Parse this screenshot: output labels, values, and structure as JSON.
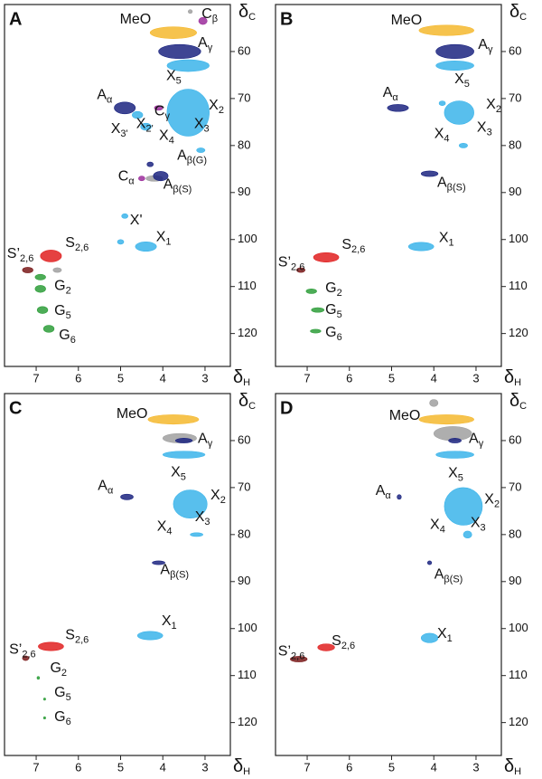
{
  "chart_data": [
    {
      "type": "contour",
      "panel_label": "A",
      "x_label": {
        "text": "δ",
        "sub": "H"
      },
      "y_label": {
        "text": "δ",
        "sub": "C"
      },
      "xlim": [
        7.75,
        2.4
      ],
      "ylim": [
        50,
        127
      ],
      "xticks": [
        7,
        6,
        5,
        4,
        3
      ],
      "yticks": [
        60,
        70,
        80,
        90,
        100,
        110,
        120
      ],
      "peaks": [
        {
          "x": 3.75,
          "y": 56,
          "xspan": 1.1,
          "yspan": 2.5,
          "color": "#f5b82e"
        },
        {
          "x": 3.05,
          "y": 53.5,
          "xspan": 0.2,
          "yspan": 1.5,
          "color": "#9b2d9b"
        },
        {
          "x": 3.35,
          "y": 51.5,
          "xspan": 0.1,
          "yspan": 0.8,
          "color": "#a0a0a0"
        },
        {
          "x": 3.6,
          "y": 60,
          "xspan": 1.0,
          "yspan": 3,
          "color": "#1c2580"
        },
        {
          "x": 3.4,
          "y": 63,
          "xspan": 1.0,
          "yspan": 2.5,
          "color": "#3bb4ea"
        },
        {
          "x": 3.4,
          "y": 73,
          "xspan": 1.0,
          "yspan": 10,
          "color": "#3bb4ea"
        },
        {
          "x": 3.1,
          "y": 81,
          "xspan": 0.2,
          "yspan": 1,
          "color": "#3bb4ea"
        },
        {
          "x": 4.9,
          "y": 72,
          "xspan": 0.5,
          "yspan": 2.5,
          "color": "#1c2580"
        },
        {
          "x": 4.6,
          "y": 73.5,
          "xspan": 0.25,
          "yspan": 1.5,
          "color": "#3bb4ea"
        },
        {
          "x": 4.4,
          "y": 76,
          "xspan": 0.25,
          "yspan": 1.5,
          "color": "#3bb4ea"
        },
        {
          "x": 4.1,
          "y": 72,
          "xspan": 0.2,
          "yspan": 1,
          "color": "#9b2d9b"
        },
        {
          "x": 4.3,
          "y": 84,
          "xspan": 0.15,
          "yspan": 1,
          "color": "#1c2580"
        },
        {
          "x": 4.5,
          "y": 87,
          "xspan": 0.15,
          "yspan": 1,
          "color": "#9b2d9b"
        },
        {
          "x": 4.2,
          "y": 87,
          "xspan": 0.4,
          "yspan": 1.2,
          "color": "#a0a0a0"
        },
        {
          "x": 4.05,
          "y": 86.5,
          "xspan": 0.35,
          "yspan": 2,
          "color": "#1c2580"
        },
        {
          "x": 4.9,
          "y": 95,
          "xspan": 0.15,
          "yspan": 1,
          "color": "#3bb4ea"
        },
        {
          "x": 4.4,
          "y": 101.5,
          "xspan": 0.5,
          "yspan": 2,
          "color": "#3bb4ea"
        },
        {
          "x": 5.0,
          "y": 100.5,
          "xspan": 0.15,
          "yspan": 1,
          "color": "#3bb4ea"
        },
        {
          "x": 6.65,
          "y": 103.5,
          "xspan": 0.5,
          "yspan": 2.5,
          "color": "#e02020"
        },
        {
          "x": 7.2,
          "y": 106.5,
          "xspan": 0.25,
          "yspan": 1.2,
          "color": "#7a1a1a"
        },
        {
          "x": 6.5,
          "y": 106.5,
          "xspan": 0.2,
          "yspan": 1,
          "color": "#a0a0a0"
        },
        {
          "x": 6.9,
          "y": 108,
          "xspan": 0.25,
          "yspan": 1.2,
          "color": "#2e9e3a"
        },
        {
          "x": 6.9,
          "y": 110.5,
          "xspan": 0.25,
          "yspan": 1.5,
          "color": "#2e9e3a"
        },
        {
          "x": 6.85,
          "y": 115,
          "xspan": 0.25,
          "yspan": 1.5,
          "color": "#2e9e3a"
        },
        {
          "x": 6.7,
          "y": 119,
          "xspan": 0.25,
          "yspan": 1.5,
          "color": "#2e9e3a"
        }
      ],
      "annotations": [
        {
          "text": "MeO",
          "sub": "",
          "x": 5.02,
          "y": 53.3
        },
        {
          "text": "C",
          "sub": "β",
          "x": 3.08,
          "y": 52.1
        },
        {
          "text": "A",
          "sub": "γ",
          "x": 3.17,
          "y": 58.3
        },
        {
          "text": "X",
          "sub": "5",
          "x": 3.92,
          "y": 65.3
        },
        {
          "text": "X",
          "sub": "2",
          "x": 2.91,
          "y": 71.6
        },
        {
          "text": "C",
          "sub": "γ",
          "x": 4.2,
          "y": 72.8
        },
        {
          "text": "A",
          "sub": "α",
          "x": 5.56,
          "y": 69.3
        },
        {
          "text": "X",
          "sub": "2'",
          "x": 4.63,
          "y": 75.5
        },
        {
          "text": "X",
          "sub": "3'",
          "x": 5.23,
          "y": 76.6
        },
        {
          "text": "X",
          "sub": "3",
          "x": 3.26,
          "y": 75.5
        },
        {
          "text": "X",
          "sub": "4",
          "x": 4.09,
          "y": 78
        },
        {
          "text": "A",
          "sub": "β(G)",
          "x": 3.66,
          "y": 82.2
        },
        {
          "text": "C",
          "sub": "α",
          "x": 5.06,
          "y": 86.7
        },
        {
          "text": "A",
          "sub": "β(S)",
          "x": 3.99,
          "y": 88.4
        },
        {
          "text": "X'",
          "sub": "",
          "x": 4.78,
          "y": 96
        },
        {
          "text": "X",
          "sub": "1",
          "x": 4.16,
          "y": 99.6
        },
        {
          "text": "S",
          "sub": "2,6",
          "x": 6.31,
          "y": 100.8
        },
        {
          "text": "S’",
          "sub": "2,6",
          "x": 7.69,
          "y": 103.1
        },
        {
          "text": "G",
          "sub": "2",
          "x": 6.57,
          "y": 110
        },
        {
          "text": "G",
          "sub": "5",
          "x": 6.57,
          "y": 115.3
        },
        {
          "text": "G",
          "sub": "6",
          "x": 6.46,
          "y": 120.5
        }
      ]
    },
    {
      "type": "contour",
      "panel_label": "B",
      "x_label": {
        "text": "δ",
        "sub": "H"
      },
      "y_label": {
        "text": "δ",
        "sub": "C"
      },
      "xlim": [
        7.75,
        2.4
      ],
      "ylim": [
        50,
        127
      ],
      "xticks": [
        7,
        6,
        5,
        4,
        3
      ],
      "yticks": [
        60,
        70,
        80,
        90,
        100,
        110,
        120
      ],
      "peaks": [
        {
          "x": 3.7,
          "y": 55.5,
          "xspan": 1.3,
          "yspan": 2.2,
          "color": "#f5b82e"
        },
        {
          "x": 3.5,
          "y": 60,
          "xspan": 0.9,
          "yspan": 3,
          "color": "#1c2580"
        },
        {
          "x": 3.5,
          "y": 63,
          "xspan": 0.9,
          "yspan": 2,
          "color": "#3bb4ea"
        },
        {
          "x": 4.85,
          "y": 72,
          "xspan": 0.5,
          "yspan": 1.5,
          "color": "#1c2580"
        },
        {
          "x": 3.4,
          "y": 73,
          "xspan": 0.7,
          "yspan": 5,
          "color": "#3bb4ea"
        },
        {
          "x": 3.8,
          "y": 71,
          "xspan": 0.15,
          "yspan": 1,
          "color": "#3bb4ea"
        },
        {
          "x": 3.3,
          "y": 80,
          "xspan": 0.2,
          "yspan": 1,
          "color": "#3bb4ea"
        },
        {
          "x": 4.1,
          "y": 86,
          "xspan": 0.4,
          "yspan": 1.2,
          "color": "#1c2580"
        },
        {
          "x": 4.3,
          "y": 101.5,
          "xspan": 0.6,
          "yspan": 1.8,
          "color": "#3bb4ea"
        },
        {
          "x": 6.55,
          "y": 103.8,
          "xspan": 0.6,
          "yspan": 2,
          "color": "#e02020"
        },
        {
          "x": 7.15,
          "y": 106.5,
          "xspan": 0.2,
          "yspan": 1,
          "color": "#7a1a1a"
        },
        {
          "x": 6.9,
          "y": 111,
          "xspan": 0.25,
          "yspan": 1,
          "color": "#2e9e3a"
        },
        {
          "x": 6.75,
          "y": 115,
          "xspan": 0.3,
          "yspan": 1,
          "color": "#2e9e3a"
        },
        {
          "x": 6.8,
          "y": 119.5,
          "xspan": 0.25,
          "yspan": 0.8,
          "color": "#2e9e3a"
        }
      ],
      "annotations": [
        {
          "text": "MeO",
          "sub": "",
          "x": 5.02,
          "y": 53.5
        },
        {
          "text": "A",
          "sub": "γ",
          "x": 2.95,
          "y": 58.7
        },
        {
          "text": "X",
          "sub": "5",
          "x": 3.51,
          "y": 66
        },
        {
          "text": "A",
          "sub": "α",
          "x": 5.21,
          "y": 68.9
        },
        {
          "text": "X",
          "sub": "2",
          "x": 2.76,
          "y": 71.4
        },
        {
          "text": "X",
          "sub": "3",
          "x": 2.98,
          "y": 76.3
        },
        {
          "text": "X",
          "sub": "4",
          "x": 3.99,
          "y": 77.6
        },
        {
          "text": "A",
          "sub": "β(S)",
          "x": 3.92,
          "y": 88
        },
        {
          "text": "X",
          "sub": "1",
          "x": 3.88,
          "y": 99.8
        },
        {
          "text": "S",
          "sub": "2,6",
          "x": 6.18,
          "y": 101.2
        },
        {
          "text": "S’",
          "sub": "2,6",
          "x": 7.69,
          "y": 105
        },
        {
          "text": "G",
          "sub": "2",
          "x": 6.57,
          "y": 110.4
        },
        {
          "text": "G",
          "sub": "5",
          "x": 6.57,
          "y": 115.1
        },
        {
          "text": "G",
          "sub": "6",
          "x": 6.57,
          "y": 119.9
        }
      ]
    },
    {
      "type": "contour",
      "panel_label": "C",
      "x_label": {
        "text": "δ",
        "sub": "H"
      },
      "y_label": {
        "text": "δ",
        "sub": "C"
      },
      "xlim": [
        7.75,
        2.4
      ],
      "ylim": [
        50,
        127
      ],
      "xticks": [
        7,
        6,
        5,
        4,
        3
      ],
      "yticks": [
        60,
        70,
        80,
        90,
        100,
        110,
        120
      ],
      "peaks": [
        {
          "x": 3.75,
          "y": 55.5,
          "xspan": 1.2,
          "yspan": 2,
          "color": "#f5b82e"
        },
        {
          "x": 3.6,
          "y": 59.5,
          "xspan": 0.8,
          "yspan": 2,
          "color": "#a0a0a0"
        },
        {
          "x": 3.5,
          "y": 60,
          "xspan": 0.4,
          "yspan": 1,
          "color": "#1c2580"
        },
        {
          "x": 3.5,
          "y": 63,
          "xspan": 1.0,
          "yspan": 1.5,
          "color": "#3bb4ea"
        },
        {
          "x": 4.85,
          "y": 72,
          "xspan": 0.3,
          "yspan": 1.2,
          "color": "#1c2580"
        },
        {
          "x": 3.35,
          "y": 73.5,
          "xspan": 0.8,
          "yspan": 6,
          "color": "#3bb4ea"
        },
        {
          "x": 3.2,
          "y": 80,
          "xspan": 0.3,
          "yspan": 0.8,
          "color": "#3bb4ea"
        },
        {
          "x": 4.1,
          "y": 86,
          "xspan": 0.3,
          "yspan": 0.8,
          "color": "#1c2580"
        },
        {
          "x": 4.3,
          "y": 101.5,
          "xspan": 0.6,
          "yspan": 1.8,
          "color": "#3bb4ea"
        },
        {
          "x": 6.65,
          "y": 103.8,
          "xspan": 0.6,
          "yspan": 1.8,
          "color": "#e02020"
        },
        {
          "x": 7.25,
          "y": 106.3,
          "xspan": 0.15,
          "yspan": 1,
          "color": "#7a1a1a"
        },
        {
          "x": 6.95,
          "y": 110.5,
          "xspan": 0.06,
          "yspan": 0.6,
          "color": "#2e9e3a"
        },
        {
          "x": 6.8,
          "y": 115,
          "xspan": 0.05,
          "yspan": 0.5,
          "color": "#2e9e3a"
        },
        {
          "x": 6.8,
          "y": 119,
          "xspan": 0.05,
          "yspan": 0.5,
          "color": "#2e9e3a"
        }
      ],
      "annotations": [
        {
          "text": "MeO",
          "sub": "",
          "x": 5.1,
          "y": 54.4
        },
        {
          "text": "A",
          "sub": "γ",
          "x": 3.17,
          "y": 59.7
        },
        {
          "text": "X",
          "sub": "5",
          "x": 3.81,
          "y": 66.8
        },
        {
          "text": "A",
          "sub": "α",
          "x": 5.54,
          "y": 69.7
        },
        {
          "text": "X",
          "sub": "2",
          "x": 2.87,
          "y": 71.8
        },
        {
          "text": "X",
          "sub": "3",
          "x": 3.24,
          "y": 76.4
        },
        {
          "text": "X",
          "sub": "4",
          "x": 4.14,
          "y": 78.4
        },
        {
          "text": "A",
          "sub": "β(S)",
          "x": 4.06,
          "y": 87.6
        },
        {
          "text": "X",
          "sub": "1",
          "x": 4.03,
          "y": 98.5
        },
        {
          "text": "S",
          "sub": "2,6",
          "x": 6.31,
          "y": 101.5
        },
        {
          "text": "S’",
          "sub": "2,6",
          "x": 7.64,
          "y": 104.6
        },
        {
          "text": "G",
          "sub": "2",
          "x": 6.67,
          "y": 108.5
        },
        {
          "text": "G",
          "sub": "5",
          "x": 6.57,
          "y": 113.7
        },
        {
          "text": "G",
          "sub": "6",
          "x": 6.57,
          "y": 118.9
        }
      ]
    },
    {
      "type": "contour",
      "panel_label": "D",
      "x_label": {
        "text": "δ",
        "sub": "H"
      },
      "y_label": {
        "text": "δ",
        "sub": "C"
      },
      "xlim": [
        7.75,
        2.4
      ],
      "ylim": [
        50,
        127
      ],
      "xticks": [
        7,
        6,
        5,
        4,
        3
      ],
      "yticks": [
        60,
        70,
        80,
        90,
        100,
        110,
        120
      ],
      "peaks": [
        {
          "x": 3.7,
          "y": 55.5,
          "xspan": 1.3,
          "yspan": 2,
          "color": "#f5b82e"
        },
        {
          "x": 3.55,
          "y": 58.5,
          "xspan": 0.9,
          "yspan": 3,
          "color": "#a0a0a0"
        },
        {
          "x": 4.0,
          "y": 52,
          "xspan": 0.2,
          "yspan": 1.5,
          "color": "#a0a0a0"
        },
        {
          "x": 3.5,
          "y": 60,
          "xspan": 0.3,
          "yspan": 1,
          "color": "#1c2580"
        },
        {
          "x": 3.5,
          "y": 63,
          "xspan": 0.9,
          "yspan": 1.5,
          "color": "#3bb4ea"
        },
        {
          "x": 4.82,
          "y": 72,
          "xspan": 0.1,
          "yspan": 1,
          "color": "#1c2580"
        },
        {
          "x": 3.3,
          "y": 74,
          "xspan": 0.9,
          "yspan": 8,
          "color": "#3bb4ea"
        },
        {
          "x": 3.2,
          "y": 80,
          "xspan": 0.2,
          "yspan": 1.5,
          "color": "#3bb4ea"
        },
        {
          "x": 4.1,
          "y": 86,
          "xspan": 0.1,
          "yspan": 0.8,
          "color": "#1c2580"
        },
        {
          "x": 4.1,
          "y": 102,
          "xspan": 0.4,
          "yspan": 2,
          "color": "#3bb4ea"
        },
        {
          "x": 6.55,
          "y": 104,
          "xspan": 0.4,
          "yspan": 1.5,
          "color": "#e02020"
        },
        {
          "x": 7.2,
          "y": 106.5,
          "xspan": 0.4,
          "yspan": 1.2,
          "color": "#7a1a1a"
        }
      ],
      "annotations": [
        {
          "text": "MeO",
          "sub": "",
          "x": 5.06,
          "y": 54.8
        },
        {
          "text": "A",
          "sub": "γ",
          "x": 3.17,
          "y": 59.7
        },
        {
          "text": "X",
          "sub": "5",
          "x": 3.66,
          "y": 67
        },
        {
          "text": "A",
          "sub": "α",
          "x": 5.38,
          "y": 70.8
        },
        {
          "text": "X",
          "sub": "2",
          "x": 2.8,
          "y": 72.6
        },
        {
          "text": "X",
          "sub": "3",
          "x": 3.13,
          "y": 77.6
        },
        {
          "text": "X",
          "sub": "4",
          "x": 4.09,
          "y": 78
        },
        {
          "text": "A",
          "sub": "β(S)",
          "x": 3.99,
          "y": 88.6
        },
        {
          "text": "X",
          "sub": "1",
          "x": 3.92,
          "y": 101.2
        },
        {
          "text": "S",
          "sub": "2,6",
          "x": 6.42,
          "y": 102.7
        },
        {
          "text": "S’",
          "sub": "2,6",
          "x": 7.69,
          "y": 105
        }
      ]
    }
  ]
}
